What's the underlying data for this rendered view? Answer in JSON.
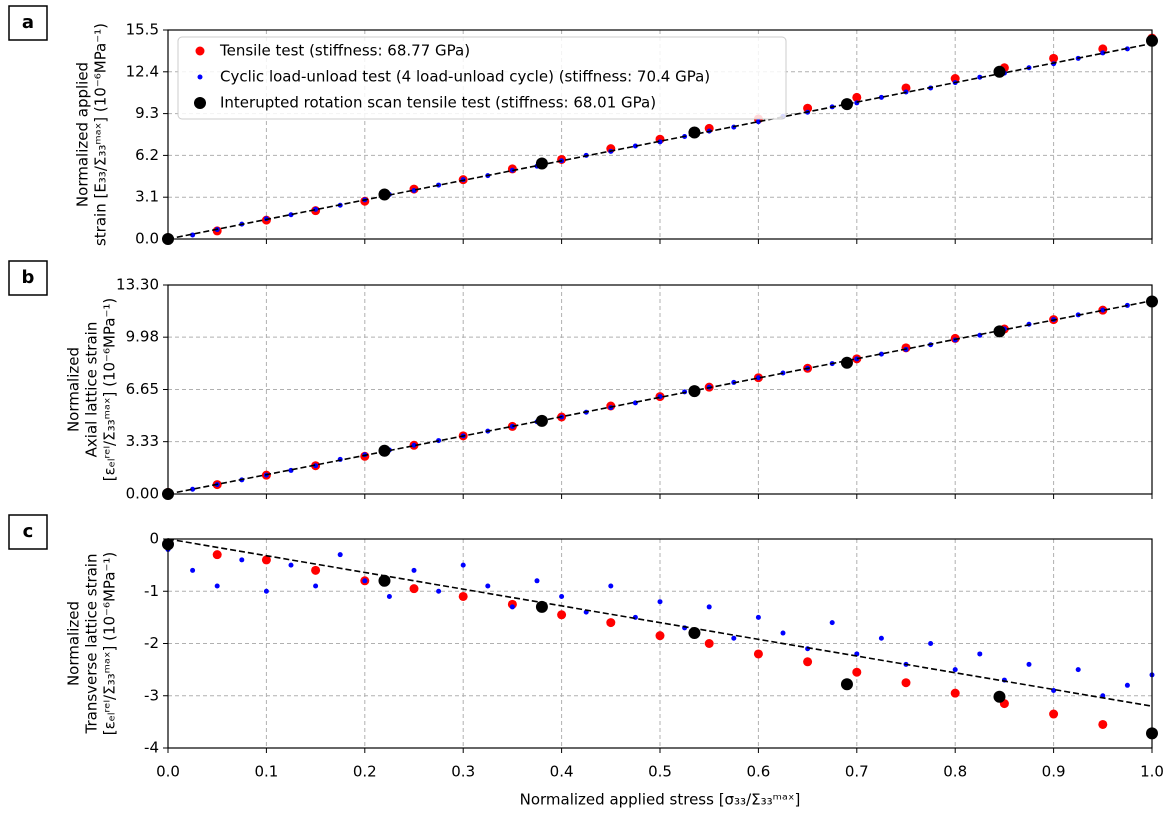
{
  "chart_data": [
    {
      "type": "scatter",
      "panel_label": "a",
      "ylabel": [
        "Normalized applied",
        "strain [E₃₃/Σ₃₃ᵐᵃˣ] (10⁻⁶MPa⁻¹)"
      ],
      "xlim": [
        0,
        1
      ],
      "ylim": [
        0,
        15.5
      ],
      "xticks": [
        0,
        0.1,
        0.2,
        0.3,
        0.4,
        0.5,
        0.6,
        0.7,
        0.8,
        0.9,
        1
      ],
      "show_xtick_labels": false,
      "yticks": [
        {
          "value": 0,
          "label": "0.0"
        },
        3.1,
        6.2,
        9.3,
        12.4,
        15.5
      ],
      "grid": true,
      "legend": "upper left",
      "series": [
        {
          "name": "Tensile test (stiffness: 68.77 GPa)",
          "color": "#ff0000",
          "x": [
            0,
            0.05,
            0.1,
            0.15,
            0.2,
            0.25,
            0.3,
            0.35,
            0.4,
            0.45,
            0.5,
            0.55,
            0.6,
            0.65,
            0.7,
            0.75,
            0.8,
            0.85,
            0.9,
            0.95,
            1.0
          ],
          "values": [
            0.1,
            0.6,
            1.4,
            2.1,
            2.8,
            3.7,
            4.4,
            5.2,
            5.9,
            6.7,
            7.4,
            8.2,
            8.9,
            9.7,
            10.5,
            11.2,
            11.9,
            12.7,
            13.4,
            14.1,
            14.9
          ]
        },
        {
          "name": "Cyclic load-unload test (4 load-unload cycle) (stiffness: 70.4 GPa)",
          "color": "#0000ff",
          "x": [
            0,
            0.025,
            0.05,
            0.075,
            0.1,
            0.125,
            0.15,
            0.175,
            0.2,
            0.225,
            0.25,
            0.275,
            0.3,
            0.325,
            0.35,
            0.375,
            0.4,
            0.425,
            0.45,
            0.475,
            0.5,
            0.525,
            0.55,
            0.575,
            0.6,
            0.625,
            0.65,
            0.675,
            0.7,
            0.725,
            0.75,
            0.775,
            0.8,
            0.825,
            0.85,
            0.875,
            0.9,
            0.925,
            0.95,
            0.975,
            1.0
          ],
          "values": [
            0.0,
            0.3,
            0.7,
            1.1,
            1.5,
            1.8,
            2.2,
            2.5,
            2.9,
            3.3,
            3.6,
            4.0,
            4.4,
            4.7,
            5.1,
            5.4,
            5.8,
            6.2,
            6.5,
            6.9,
            7.2,
            7.6,
            8.0,
            8.3,
            8.7,
            9.1,
            9.4,
            9.8,
            10.1,
            10.5,
            10.9,
            11.2,
            11.6,
            12.0,
            12.3,
            12.7,
            13.0,
            13.4,
            13.8,
            14.1,
            14.5
          ]
        },
        {
          "name": "Interupted rotation scan tensile test (stiffness: 68.01 GPa)",
          "color": "#000000",
          "x": [
            0,
            0.22,
            0.38,
            0.535,
            0.69,
            0.845,
            1.0
          ],
          "values": [
            0,
            3.3,
            5.6,
            7.9,
            10.0,
            12.4,
            14.7
          ]
        }
      ],
      "fit": {
        "color": "#000000",
        "x": [
          0,
          1
        ],
        "values": [
          0,
          14.5
        ]
      }
    },
    {
      "type": "scatter",
      "panel_label": "b",
      "ylabel": [
        "Normalized",
        "Axial lattice strain",
        "[εₑₗʳᵉˡ/Σ₃₃ᵐᵃˣ] (10⁻⁶MPa⁻¹)"
      ],
      "xlim": [
        0,
        1
      ],
      "ylim": [
        0,
        13.3
      ],
      "xticks": [
        0,
        0.1,
        0.2,
        0.3,
        0.4,
        0.5,
        0.6,
        0.7,
        0.8,
        0.9,
        1
      ],
      "show_xtick_labels": false,
      "yticks": [
        {
          "value": 0,
          "label": "0.00"
        },
        3.33,
        6.65,
        9.98,
        {
          "value": 13.3,
          "label": "13.30"
        }
      ],
      "grid": true,
      "series": [
        {
          "color": "#ff0000",
          "x": [
            0,
            0.05,
            0.1,
            0.15,
            0.2,
            0.25,
            0.3,
            0.35,
            0.4,
            0.45,
            0.5,
            0.55,
            0.6,
            0.65,
            0.7,
            0.75,
            0.8,
            0.85,
            0.9,
            0.95,
            1.0
          ],
          "values": [
            0.1,
            0.6,
            1.2,
            1.8,
            2.4,
            3.1,
            3.7,
            4.3,
            4.9,
            5.6,
            6.2,
            6.8,
            7.4,
            8.0,
            8.6,
            9.3,
            9.9,
            10.5,
            11.1,
            11.7,
            12.3
          ]
        },
        {
          "color": "#0000ff",
          "x": [
            0,
            0.025,
            0.05,
            0.075,
            0.1,
            0.125,
            0.15,
            0.175,
            0.2,
            0.225,
            0.25,
            0.275,
            0.3,
            0.325,
            0.35,
            0.375,
            0.4,
            0.425,
            0.45,
            0.475,
            0.5,
            0.525,
            0.55,
            0.575,
            0.6,
            0.625,
            0.65,
            0.675,
            0.7,
            0.725,
            0.75,
            0.775,
            0.8,
            0.825,
            0.85,
            0.875,
            0.9,
            0.925,
            0.95,
            0.975,
            1.0
          ],
          "values": [
            0.0,
            0.3,
            0.6,
            0.9,
            1.2,
            1.5,
            1.8,
            2.2,
            2.5,
            2.8,
            3.1,
            3.4,
            3.7,
            4.0,
            4.3,
            4.6,
            4.9,
            5.2,
            5.5,
            5.8,
            6.2,
            6.5,
            6.8,
            7.1,
            7.4,
            7.7,
            8.0,
            8.3,
            8.6,
            8.9,
            9.2,
            9.5,
            9.8,
            10.1,
            10.5,
            10.8,
            11.1,
            11.4,
            11.7,
            12.0,
            12.3
          ]
        },
        {
          "color": "#000000",
          "x": [
            0,
            0.22,
            0.38,
            0.535,
            0.69,
            0.845,
            1.0
          ],
          "values": [
            0,
            2.75,
            4.65,
            6.55,
            8.35,
            10.35,
            12.25
          ]
        }
      ],
      "fit": {
        "color": "#000000",
        "x": [
          0,
          1
        ],
        "values": [
          0,
          12.3
        ]
      }
    },
    {
      "type": "scatter",
      "panel_label": "c",
      "ylabel": [
        "Normalized",
        "Transverse lattice strain",
        "[εₑₗʳᵉˡ/Σ₃₃ᵐᵃˣ] (10⁻⁶MPa⁻¹)"
      ],
      "xlabel": "Normalized applied stress [σ₃₃/Σ₃₃ᵐᵃˣ]",
      "xlim": [
        0,
        1
      ],
      "ylim": [
        -4,
        0
      ],
      "xticks": [
        {
          "value": 0,
          "label": "0.0"
        },
        0.1,
        0.2,
        0.3,
        0.4,
        0.5,
        0.6,
        0.7,
        0.8,
        0.9,
        {
          "value": 1,
          "label": "1.0"
        }
      ],
      "show_xtick_labels": true,
      "yticks": [
        -4,
        -3,
        -2,
        -1,
        0
      ],
      "grid": true,
      "series": [
        {
          "color": "#ff0000",
          "x": [
            0,
            0.05,
            0.1,
            0.15,
            0.2,
            0.25,
            0.3,
            0.35,
            0.4,
            0.45,
            0.5,
            0.55,
            0.6,
            0.65,
            0.7,
            0.75,
            0.8,
            0.85,
            0.9,
            0.95,
            1.0
          ],
          "values": [
            -0.1,
            -0.3,
            -0.4,
            -0.6,
            -0.8,
            -0.95,
            -1.1,
            -1.25,
            -1.45,
            -1.6,
            -1.85,
            -2.0,
            -2.2,
            -2.35,
            -2.55,
            -2.75,
            -2.95,
            -3.15,
            -3.35,
            -3.55,
            -3.7
          ]
        },
        {
          "color": "#0000ff",
          "x": [
            0,
            0.025,
            0.05,
            0.075,
            0.1,
            0.125,
            0.15,
            0.175,
            0.2,
            0.225,
            0.25,
            0.275,
            0.3,
            0.325,
            0.35,
            0.375,
            0.4,
            0.425,
            0.45,
            0.475,
            0.5,
            0.525,
            0.55,
            0.575,
            0.6,
            0.625,
            0.65,
            0.675,
            0.7,
            0.725,
            0.75,
            0.775,
            0.8,
            0.825,
            0.85,
            0.875,
            0.9,
            0.925,
            0.95,
            0.975,
            1.0
          ],
          "values": [
            -0.2,
            -0.6,
            -0.9,
            -0.4,
            -1.0,
            -0.5,
            -0.9,
            -0.3,
            -0.8,
            -1.1,
            -0.6,
            -1.0,
            -0.5,
            -0.9,
            -1.3,
            -0.8,
            -1.1,
            -1.4,
            -0.9,
            -1.5,
            -1.2,
            -1.7,
            -1.3,
            -1.9,
            -1.5,
            -1.8,
            -2.1,
            -1.6,
            -2.2,
            -1.9,
            -2.4,
            -2.0,
            -2.5,
            -2.2,
            -2.7,
            -2.4,
            -2.9,
            -2.5,
            -3.0,
            -2.8,
            -2.6
          ]
        },
        {
          "color": "#000000",
          "x": [
            0,
            0.22,
            0.38,
            0.535,
            0.69,
            0.845,
            1.0
          ],
          "values": [
            -0.1,
            -0.8,
            -1.3,
            -1.8,
            -2.78,
            -3.02,
            -3.72
          ]
        }
      ],
      "fit": {
        "color": "#000000",
        "x": [
          0,
          1
        ],
        "values": [
          0,
          -3.2
        ]
      }
    }
  ]
}
